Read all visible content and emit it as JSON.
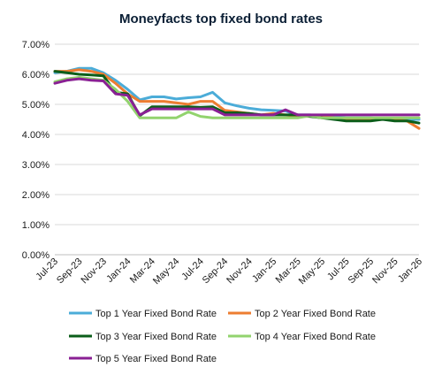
{
  "chart_data": {
    "type": "line",
    "title": "Moneyfacts top fixed bond rates",
    "xlabel": "",
    "ylabel": "",
    "ylim": [
      0,
      7
    ],
    "y_ticks": [
      "0.00%",
      "1.00%",
      "2.00%",
      "3.00%",
      "4.00%",
      "5.00%",
      "6.00%",
      "7.00%"
    ],
    "grid": "horizontal",
    "legend_position": "bottom",
    "categories": [
      "Jul-23",
      "Aug-23",
      "Sep-23",
      "Oct-23",
      "Nov-23",
      "Dec-23",
      "Jan-24",
      "Feb-24",
      "Mar-24",
      "Apr-24",
      "May-24",
      "Jun-24",
      "Jul-24",
      "Aug-24",
      "Sep-24",
      "Oct-24",
      "Nov-24",
      "Dec-24",
      "Jan-25",
      "Feb-25",
      "Mar-25",
      "Apr-25",
      "May-25",
      "Jun-25",
      "Jul-25",
      "Aug-25",
      "Sep-25",
      "Oct-25",
      "Nov-25",
      "Dec-25",
      "Jan-26"
    ],
    "x_tick_labels": [
      "Jul-23",
      "Sep-23",
      "Nov-23",
      "Jan-24",
      "Mar-24",
      "May-24",
      "Jul-24",
      "Sep-24",
      "Nov-24",
      "Jan-25",
      "Mar-25",
      "May-25",
      "Jul-25",
      "Sep-25",
      "Nov-25",
      "Jan-26"
    ],
    "series": [
      {
        "name": "Top 1 Year Fixed Bond Rate",
        "color": "#4bacd8",
        "values": [
          6.05,
          6.1,
          6.2,
          6.2,
          6.05,
          5.8,
          5.5,
          5.15,
          5.25,
          5.25,
          5.18,
          5.22,
          5.25,
          5.4,
          5.05,
          4.95,
          4.87,
          4.82,
          4.8,
          4.78,
          4.65,
          4.65,
          4.62,
          4.6,
          4.55,
          4.55,
          4.55,
          4.52,
          4.5,
          4.5,
          4.5
        ]
      },
      {
        "name": "Top 2 Year Fixed Bond Rate",
        "color": "#ed7d31",
        "values": [
          6.1,
          6.1,
          6.15,
          6.1,
          6.0,
          5.7,
          5.35,
          5.1,
          5.1,
          5.1,
          5.05,
          5.0,
          5.1,
          5.1,
          4.8,
          4.75,
          4.7,
          4.65,
          4.7,
          4.65,
          4.6,
          4.6,
          4.6,
          4.55,
          4.5,
          4.5,
          4.5,
          4.5,
          4.5,
          4.45,
          4.2
        ]
      },
      {
        "name": "Top 3 Year Fixed Bond Rate",
        "color": "#0b5e1a",
        "values": [
          6.1,
          6.05,
          6.0,
          5.98,
          5.95,
          5.4,
          5.35,
          4.62,
          4.92,
          4.92,
          4.92,
          4.92,
          4.9,
          4.92,
          4.72,
          4.72,
          4.7,
          4.65,
          4.65,
          4.65,
          4.65,
          4.6,
          4.55,
          4.5,
          4.45,
          4.45,
          4.45,
          4.5,
          4.45,
          4.45,
          4.38
        ]
      },
      {
        "name": "Top 4 Year Fixed Bond Rate",
        "color": "#92d36e",
        "values": [
          5.75,
          5.85,
          5.9,
          5.85,
          5.8,
          5.5,
          5.1,
          4.55,
          4.55,
          4.55,
          4.55,
          4.75,
          4.6,
          4.55,
          4.55,
          4.55,
          4.55,
          4.55,
          4.55,
          4.55,
          4.55,
          4.62,
          4.55,
          4.55,
          4.55,
          4.55,
          4.55,
          4.55,
          4.55,
          4.55,
          4.55
        ]
      },
      {
        "name": "Top 5 Year Fixed Bond Rate",
        "color": "#8a2094",
        "values": [
          5.7,
          5.8,
          5.85,
          5.8,
          5.78,
          5.35,
          5.3,
          4.65,
          4.85,
          4.85,
          4.85,
          4.85,
          4.85,
          4.85,
          4.65,
          4.65,
          4.65,
          4.65,
          4.65,
          4.82,
          4.65,
          4.65,
          4.65,
          4.65,
          4.65,
          4.65,
          4.65,
          4.65,
          4.65,
          4.65,
          4.65
        ]
      }
    ]
  }
}
